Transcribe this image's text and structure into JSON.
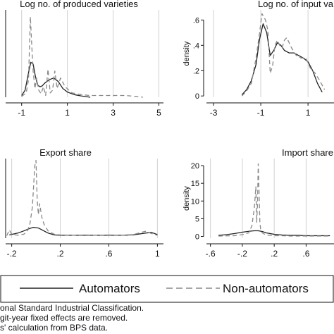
{
  "chart_data": [
    {
      "type": "line",
      "title": "Log no. of produced varieties",
      "ylabel": "",
      "x_ticks": [
        -1,
        1,
        3,
        5
      ],
      "y_ticks": [],
      "xlim": [
        -1.7,
        5.2
      ],
      "ylim": [
        0,
        1.0
      ],
      "grid": true,
      "series": [
        {
          "name": "Automators",
          "x": [
            -1.0,
            -0.85,
            -0.7,
            -0.6,
            -0.5,
            -0.4,
            -0.3,
            -0.2,
            -0.1,
            0.0,
            0.2,
            0.4,
            0.6,
            0.8,
            1.0,
            1.3,
            1.6,
            2.0
          ],
          "y": [
            0.02,
            0.08,
            0.28,
            0.4,
            0.38,
            0.24,
            0.14,
            0.12,
            0.13,
            0.16,
            0.2,
            0.22,
            0.18,
            0.1,
            0.06,
            0.03,
            0.015,
            0.0
          ]
        },
        {
          "name": "Non-automators",
          "x": [
            -1.0,
            -0.8,
            -0.7,
            -0.62,
            -0.58,
            -0.5,
            -0.42,
            -0.35,
            -0.25,
            -0.15,
            -0.05,
            0.05,
            0.15,
            0.25,
            0.35,
            0.45,
            0.55,
            0.7,
            0.9,
            1.2,
            1.6,
            2.0,
            2.5,
            3.0,
            3.5,
            4.0,
            4.3
          ],
          "y": [
            0.01,
            0.05,
            0.2,
            0.92,
            0.7,
            0.3,
            0.1,
            0.22,
            0.08,
            0.04,
            0.12,
            0.02,
            0.32,
            0.05,
            0.08,
            0.3,
            0.1,
            0.22,
            0.12,
            0.05,
            0.03,
            0.02,
            0.02,
            0.02,
            0.02,
            0.01,
            0.0
          ]
        }
      ]
    },
    {
      "type": "line",
      "title": "Log no. of input va",
      "ylabel": "density",
      "x_ticks": [
        -3,
        -1,
        1
      ],
      "y_ticks": [
        0,
        0.2,
        0.4,
        0.6
      ],
      "y_tick_labels": [
        "0",
        ".2",
        ".4",
        ".6"
      ],
      "xlim": [
        -3.3,
        2.1
      ],
      "ylim": [
        -0.01,
        0.68
      ],
      "grid": true,
      "series": [
        {
          "name": "Automators",
          "x": [
            -1.8,
            -1.6,
            -1.4,
            -1.2,
            -1.05,
            -0.9,
            -0.75,
            -0.6,
            -0.45,
            -0.3,
            -0.15,
            0.0,
            0.2,
            0.4,
            0.6,
            0.8,
            1.0,
            1.2,
            1.4,
            1.6
          ],
          "y": [
            0.01,
            0.05,
            0.12,
            0.25,
            0.45,
            0.57,
            0.5,
            0.32,
            0.36,
            0.42,
            0.4,
            0.36,
            0.34,
            0.34,
            0.32,
            0.3,
            0.27,
            0.2,
            0.1,
            0.03
          ]
        },
        {
          "name": "Non-automators",
          "x": [
            -1.8,
            -1.6,
            -1.4,
            -1.2,
            -1.05,
            -0.95,
            -0.8,
            -0.7,
            -0.6,
            -0.5,
            -0.4,
            -0.3,
            -0.2,
            -0.1,
            0.0,
            0.1,
            0.3,
            0.5,
            0.7,
            0.9,
            1.1,
            1.3,
            1.5,
            1.7
          ],
          "y": [
            0.0,
            0.04,
            0.1,
            0.3,
            0.5,
            0.65,
            0.6,
            0.52,
            0.18,
            0.24,
            0.4,
            0.44,
            0.4,
            0.38,
            0.44,
            0.46,
            0.38,
            0.32,
            0.3,
            0.3,
            0.22,
            0.18,
            0.12,
            0.05
          ]
        }
      ]
    },
    {
      "type": "line",
      "title": "Export share",
      "ylabel": "",
      "x_ticks": [
        -0.2,
        0.2,
        0.6,
        1
      ],
      "x_tick_labels": [
        "-.2",
        ".2",
        ".6",
        "1"
      ],
      "y_ticks": [],
      "xlim": [
        -0.25,
        1.05
      ],
      "ylim": [
        -0.5,
        21.5
      ],
      "grid": true,
      "series": [
        {
          "name": "Automators",
          "x": [
            -0.22,
            -0.15,
            -0.1,
            -0.05,
            -0.02,
            0.02,
            0.06,
            0.1,
            0.15,
            0.2,
            0.3,
            0.4,
            0.5,
            0.6,
            0.7,
            0.8,
            0.9,
            0.95,
            1.0
          ],
          "y": [
            0.4,
            0.9,
            1.5,
            2.2,
            2.5,
            2.3,
            1.6,
            0.9,
            0.4,
            0.3,
            0.3,
            0.3,
            0.3,
            0.3,
            0.3,
            0.4,
            0.9,
            1.1,
            0.5
          ]
        },
        {
          "name": "Non-automators",
          "x": [
            -0.24,
            -0.22,
            -0.2,
            -0.15,
            -0.1,
            -0.07,
            -0.05,
            -0.03,
            -0.01,
            0.0,
            0.01,
            0.02,
            0.03,
            0.05,
            0.07,
            0.1,
            0.15,
            0.2,
            0.3,
            0.4,
            0.5,
            0.6,
            0.7,
            0.8,
            0.9,
            0.95,
            1.0
          ],
          "y": [
            0.2,
            1.8,
            0.6,
            0.3,
            0.6,
            1.5,
            3.5,
            8.0,
            19.5,
            21.0,
            10.0,
            6.0,
            9.0,
            5.0,
            3.0,
            1.5,
            0.6,
            0.4,
            0.3,
            0.4,
            0.3,
            0.4,
            0.3,
            0.5,
            1.4,
            0.8,
            0.3
          ]
        }
      ]
    },
    {
      "type": "line",
      "title": "Import share",
      "ylabel": "density",
      "x_ticks": [
        -0.6,
        -0.2,
        0.2,
        0.6
      ],
      "x_tick_labels": [
        "-.6",
        "-.2",
        ".2",
        ".6"
      ],
      "y_ticks": [
        0,
        5,
        10,
        15,
        20
      ],
      "xlim": [
        -0.65,
        0.95
      ],
      "ylim": [
        -0.5,
        22.0
      ],
      "grid": true,
      "series": [
        {
          "name": "Automators",
          "x": [
            -0.5,
            -0.4,
            -0.3,
            -0.2,
            -0.1,
            -0.05,
            0.0,
            0.05,
            0.1,
            0.2,
            0.3,
            0.4,
            0.5,
            0.6,
            0.7,
            0.8,
            0.9
          ],
          "y": [
            0.3,
            0.5,
            0.8,
            1.2,
            1.5,
            1.6,
            1.6,
            1.4,
            1.0,
            0.6,
            0.4,
            0.3,
            0.3,
            0.2,
            0.2,
            0.2,
            0.2
          ]
        },
        {
          "name": "Non-automators",
          "x": [
            -0.5,
            -0.3,
            -0.2,
            -0.12,
            -0.08,
            -0.05,
            -0.03,
            -0.02,
            -0.01,
            0.0,
            0.01,
            0.02,
            0.03,
            0.05,
            0.08,
            0.1,
            0.15,
            0.2,
            0.3,
            0.4,
            0.5,
            0.6,
            0.7,
            0.8,
            0.9
          ],
          "y": [
            0.1,
            0.2,
            0.5,
            1.0,
            3.0,
            8.0,
            14.0,
            4.0,
            9.0,
            20.5,
            12.0,
            4.0,
            2.0,
            1.0,
            0.6,
            0.4,
            0.3,
            0.2,
            0.2,
            0.1,
            0.1,
            0.1,
            0.1,
            0.1,
            0.1
          ]
        }
      ]
    }
  ],
  "legend": {
    "items": [
      {
        "label": "Automators",
        "style": "solid"
      },
      {
        "label": "Non-automators",
        "style": "dashed"
      }
    ]
  },
  "notes": [
    "onal Standard Industrial Classification.",
    "git-year fixed effects are removed.",
    "s' calculation from BPS data."
  ],
  "colors": {
    "automators": "#222222",
    "non_automators": "#888888",
    "grid": "#d0d0d0",
    "axis": "#111111"
  }
}
